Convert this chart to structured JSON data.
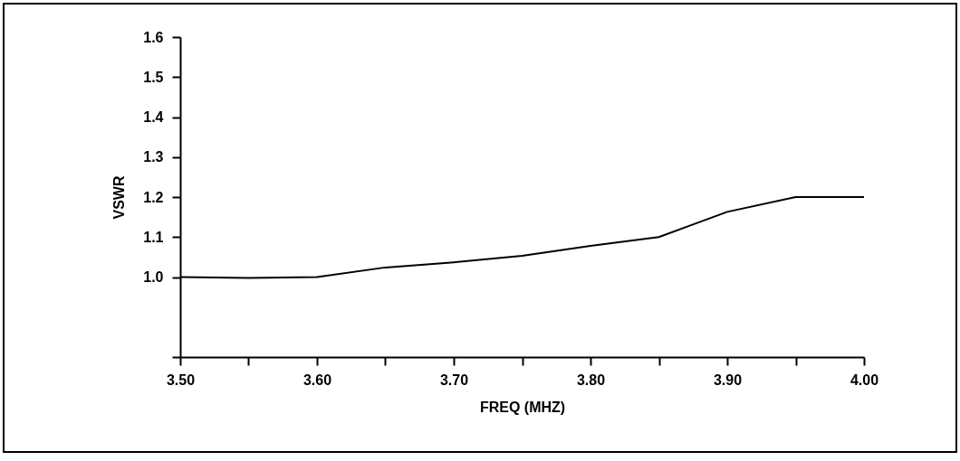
{
  "chart_data": {
    "type": "line",
    "xlabel": "FREQ (MHZ)",
    "ylabel": "VSWR",
    "x": [
      3.5,
      3.55,
      3.6,
      3.65,
      3.7,
      3.75,
      3.8,
      3.85,
      3.9,
      3.95,
      4.0
    ],
    "series": [
      {
        "color": "#000000",
        "values": [
          1.0,
          0.998,
          1.0,
          1.024,
          1.037,
          1.053,
          1.078,
          1.1,
          1.163,
          1.2,
          1.2
        ]
      }
    ],
    "xlim": [
      3.5,
      4.0
    ],
    "xticks": [
      {
        "value": 3.5,
        "label": "3.50"
      },
      {
        "value": 3.55,
        "label": null
      },
      {
        "value": 3.6,
        "label": "3.60"
      },
      {
        "value": 3.65,
        "label": null
      },
      {
        "value": 3.7,
        "label": "3.70"
      },
      {
        "value": 3.75,
        "label": null
      },
      {
        "value": 3.8,
        "label": "3.80"
      },
      {
        "value": 3.85,
        "label": null
      },
      {
        "value": 3.9,
        "label": "3.90"
      },
      {
        "value": 3.95,
        "label": null
      },
      {
        "value": 4.0,
        "label": "4.00"
      }
    ],
    "ylim": [
      0.8,
      1.6
    ],
    "yticks": [
      {
        "value": 0.8,
        "label": null
      },
      {
        "value": 1.0,
        "label": "1.0"
      },
      {
        "value": 1.1,
        "label": "1.1"
      },
      {
        "value": 1.2,
        "label": "1.2"
      },
      {
        "value": 1.3,
        "label": "1.3"
      },
      {
        "value": 1.4,
        "label": "1.4"
      },
      {
        "value": 1.5,
        "label": "1.5"
      },
      {
        "value": 1.6,
        "label": "1.6"
      }
    ],
    "grid": false,
    "legend": false,
    "marker": "none",
    "line_style": "solid"
  }
}
